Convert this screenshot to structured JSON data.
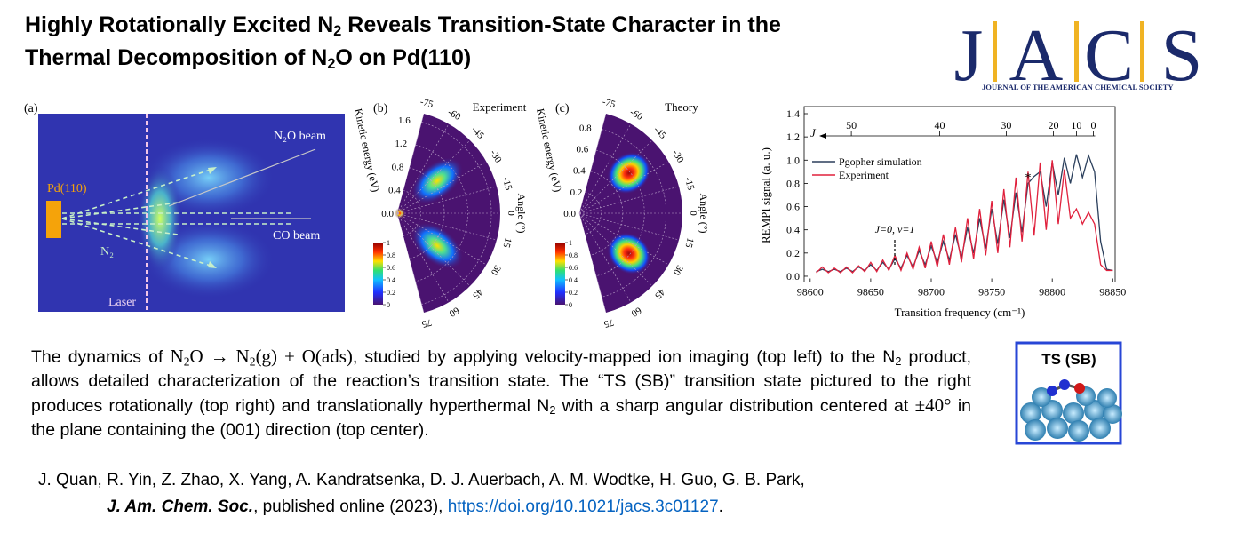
{
  "header": {
    "title": [
      "Highly Rotationally Excited N",
      "2",
      " Reveals Transition-State Character in the",
      "Thermal Decomposition of N",
      "2",
      "O on Pd(110)"
    ],
    "journal_logo": {
      "letters": [
        "J",
        "A",
        "C",
        "S"
      ],
      "name": "JOURNAL OF THE AMERICAN CHEMICAL SOCIETY"
    }
  },
  "figure": {
    "panel_a": {
      "label": "(a)",
      "n2o_beam": "N₂O beam",
      "surface": "Pd(110)",
      "co_beam": "CO beam",
      "product": "N₂",
      "laser": "Laser"
    },
    "panel_b": {
      "label": "(b)",
      "title": "Experiment",
      "energy_label": "Kinetic energy (eV)",
      "energy_ticks": [
        {
          "value": 0,
          "label": "0.0"
        },
        0.4,
        0.8,
        1.2,
        1.6
      ],
      "energy_lim": [
        0,
        1.75
      ],
      "angle_label": "Angle (°)",
      "angle_ticks": [
        -75,
        -60,
        -45,
        -30,
        -15,
        0,
        15,
        30,
        45,
        60,
        75
      ],
      "angle_lim": [
        -75,
        75
      ],
      "colorbar_ticks": [
        0,
        0.2,
        0.4,
        0.6,
        0.8,
        1
      ]
    },
    "panel_c": {
      "label": "(c)",
      "title": "Theory",
      "energy_label": "Kinetic energy (eV)",
      "energy_ticks": [
        {
          "value": 0,
          "label": "0.0"
        },
        0.2,
        0.4,
        0.6,
        0.8
      ],
      "energy_lim": [
        0,
        0.95
      ],
      "angle_label": "Angle (°)",
      "angle_ticks": [
        -75,
        -60,
        -45,
        -30,
        -15,
        0,
        15,
        30,
        45,
        60,
        75
      ],
      "angle_lim": [
        -75,
        75
      ],
      "colorbar_ticks": [
        0,
        0.2,
        0.4,
        0.6,
        0.8,
        1
      ]
    }
  },
  "chart_data": {
    "type": "line",
    "x_label": "Transition frequency (cm⁻¹)",
    "y_label": "REMPI signal (a. u.)",
    "x": [
      98605,
      98610,
      98615,
      98620,
      98625,
      98630,
      98635,
      98640,
      98645,
      98650,
      98655,
      98660,
      98665,
      98670,
      98675,
      98680,
      98685,
      98690,
      98695,
      98700,
      98705,
      98710,
      98715,
      98720,
      98725,
      98730,
      98735,
      98740,
      98745,
      98750,
      98755,
      98760,
      98765,
      98770,
      98775,
      98780,
      98785,
      98790,
      98795,
      98800,
      98805,
      98810,
      98815,
      98820,
      98825,
      98830,
      98835,
      98840,
      98845,
      98850
    ],
    "series": [
      {
        "name": "Pgopher simulation",
        "color": "#2b3f5c",
        "values": [
          0.04,
          0.06,
          0.04,
          0.06,
          0.04,
          0.07,
          0.04,
          0.08,
          0.05,
          0.1,
          0.05,
          0.12,
          0.06,
          0.15,
          0.07,
          0.18,
          0.08,
          0.22,
          0.1,
          0.26,
          0.12,
          0.3,
          0.14,
          0.36,
          0.16,
          0.42,
          0.2,
          0.5,
          0.24,
          0.58,
          0.28,
          0.66,
          0.33,
          0.72,
          0.38,
          0.8,
          0.86,
          0.9,
          0.6,
          0.98,
          0.7,
          1.02,
          0.8,
          1.05,
          0.85,
          1.04,
          0.9,
          0.3,
          0.06,
          0.05
        ]
      },
      {
        "name": "Experiment",
        "color": "#e0203c",
        "values": [
          0.03,
          0.08,
          0.03,
          0.07,
          0.03,
          0.08,
          0.03,
          0.09,
          0.04,
          0.12,
          0.04,
          0.14,
          0.05,
          0.18,
          0.05,
          0.2,
          0.06,
          0.25,
          0.07,
          0.3,
          0.08,
          0.36,
          0.1,
          0.42,
          0.12,
          0.5,
          0.15,
          0.58,
          0.18,
          0.65,
          0.2,
          0.75,
          0.25,
          0.85,
          0.3,
          0.9,
          0.35,
          0.98,
          0.4,
          1.0,
          0.45,
          0.92,
          0.5,
          0.58,
          0.45,
          0.55,
          0.45,
          0.1,
          0.05,
          0.05
        ]
      }
    ],
    "xlim": [
      98595,
      98852
    ],
    "xticks": [
      98600,
      98650,
      98700,
      98750,
      98800,
      98850
    ],
    "ylim": [
      -0.05,
      1.4
    ],
    "yticks": [
      {
        "value": 0,
        "label": "0.0"
      },
      0.2,
      0.4,
      0.6,
      0.8,
      {
        "value": 1,
        "label": "1.0"
      },
      1.2,
      1.4
    ],
    "top_axis": {
      "label": "J",
      "ticks": [
        {
          "value": 98634,
          "label": "50"
        },
        {
          "value": 98707,
          "label": "40"
        },
        {
          "value": 98762,
          "label": "30"
        },
        {
          "value": 98801,
          "label": "20"
        },
        {
          "value": 98820,
          "label": "10"
        },
        {
          "value": 98834,
          "label": "0"
        }
      ]
    },
    "annotations": [
      "*",
      "J=0, v=1"
    ]
  },
  "body": [
    "The dynamics of ",
    "N",
    "2",
    "O → N",
    "2",
    "(g) + O(ads)",
    ", studied by applying velocity-mapped ion imaging (top left) to the N",
    "2",
    " product, allows detailed characterization of the reaction’s transition state. The “TS (SB)” transition state pictured to the right produces rotationally (top right) and translationally hyperthermal N",
    "2",
    " with a sharp angular distribution centered at ",
    "±40°",
    " in the plane containing the (001) direction (top center)."
  ],
  "ts_image": {
    "label": "TS (SB)"
  },
  "citation": {
    "authors": "J. Quan, R. Yin, Z. Zhao, X. Yang, A. Kandratsenka, D. J. Auerbach, A. M. Wodtke, H. Guo, G. B. Park,",
    "journal": "J. Am. Chem. Soc.",
    "details": ", published online (2023), ",
    "doi": "https://doi.org/10.1021/jacs.3c01127",
    "end": "."
  }
}
